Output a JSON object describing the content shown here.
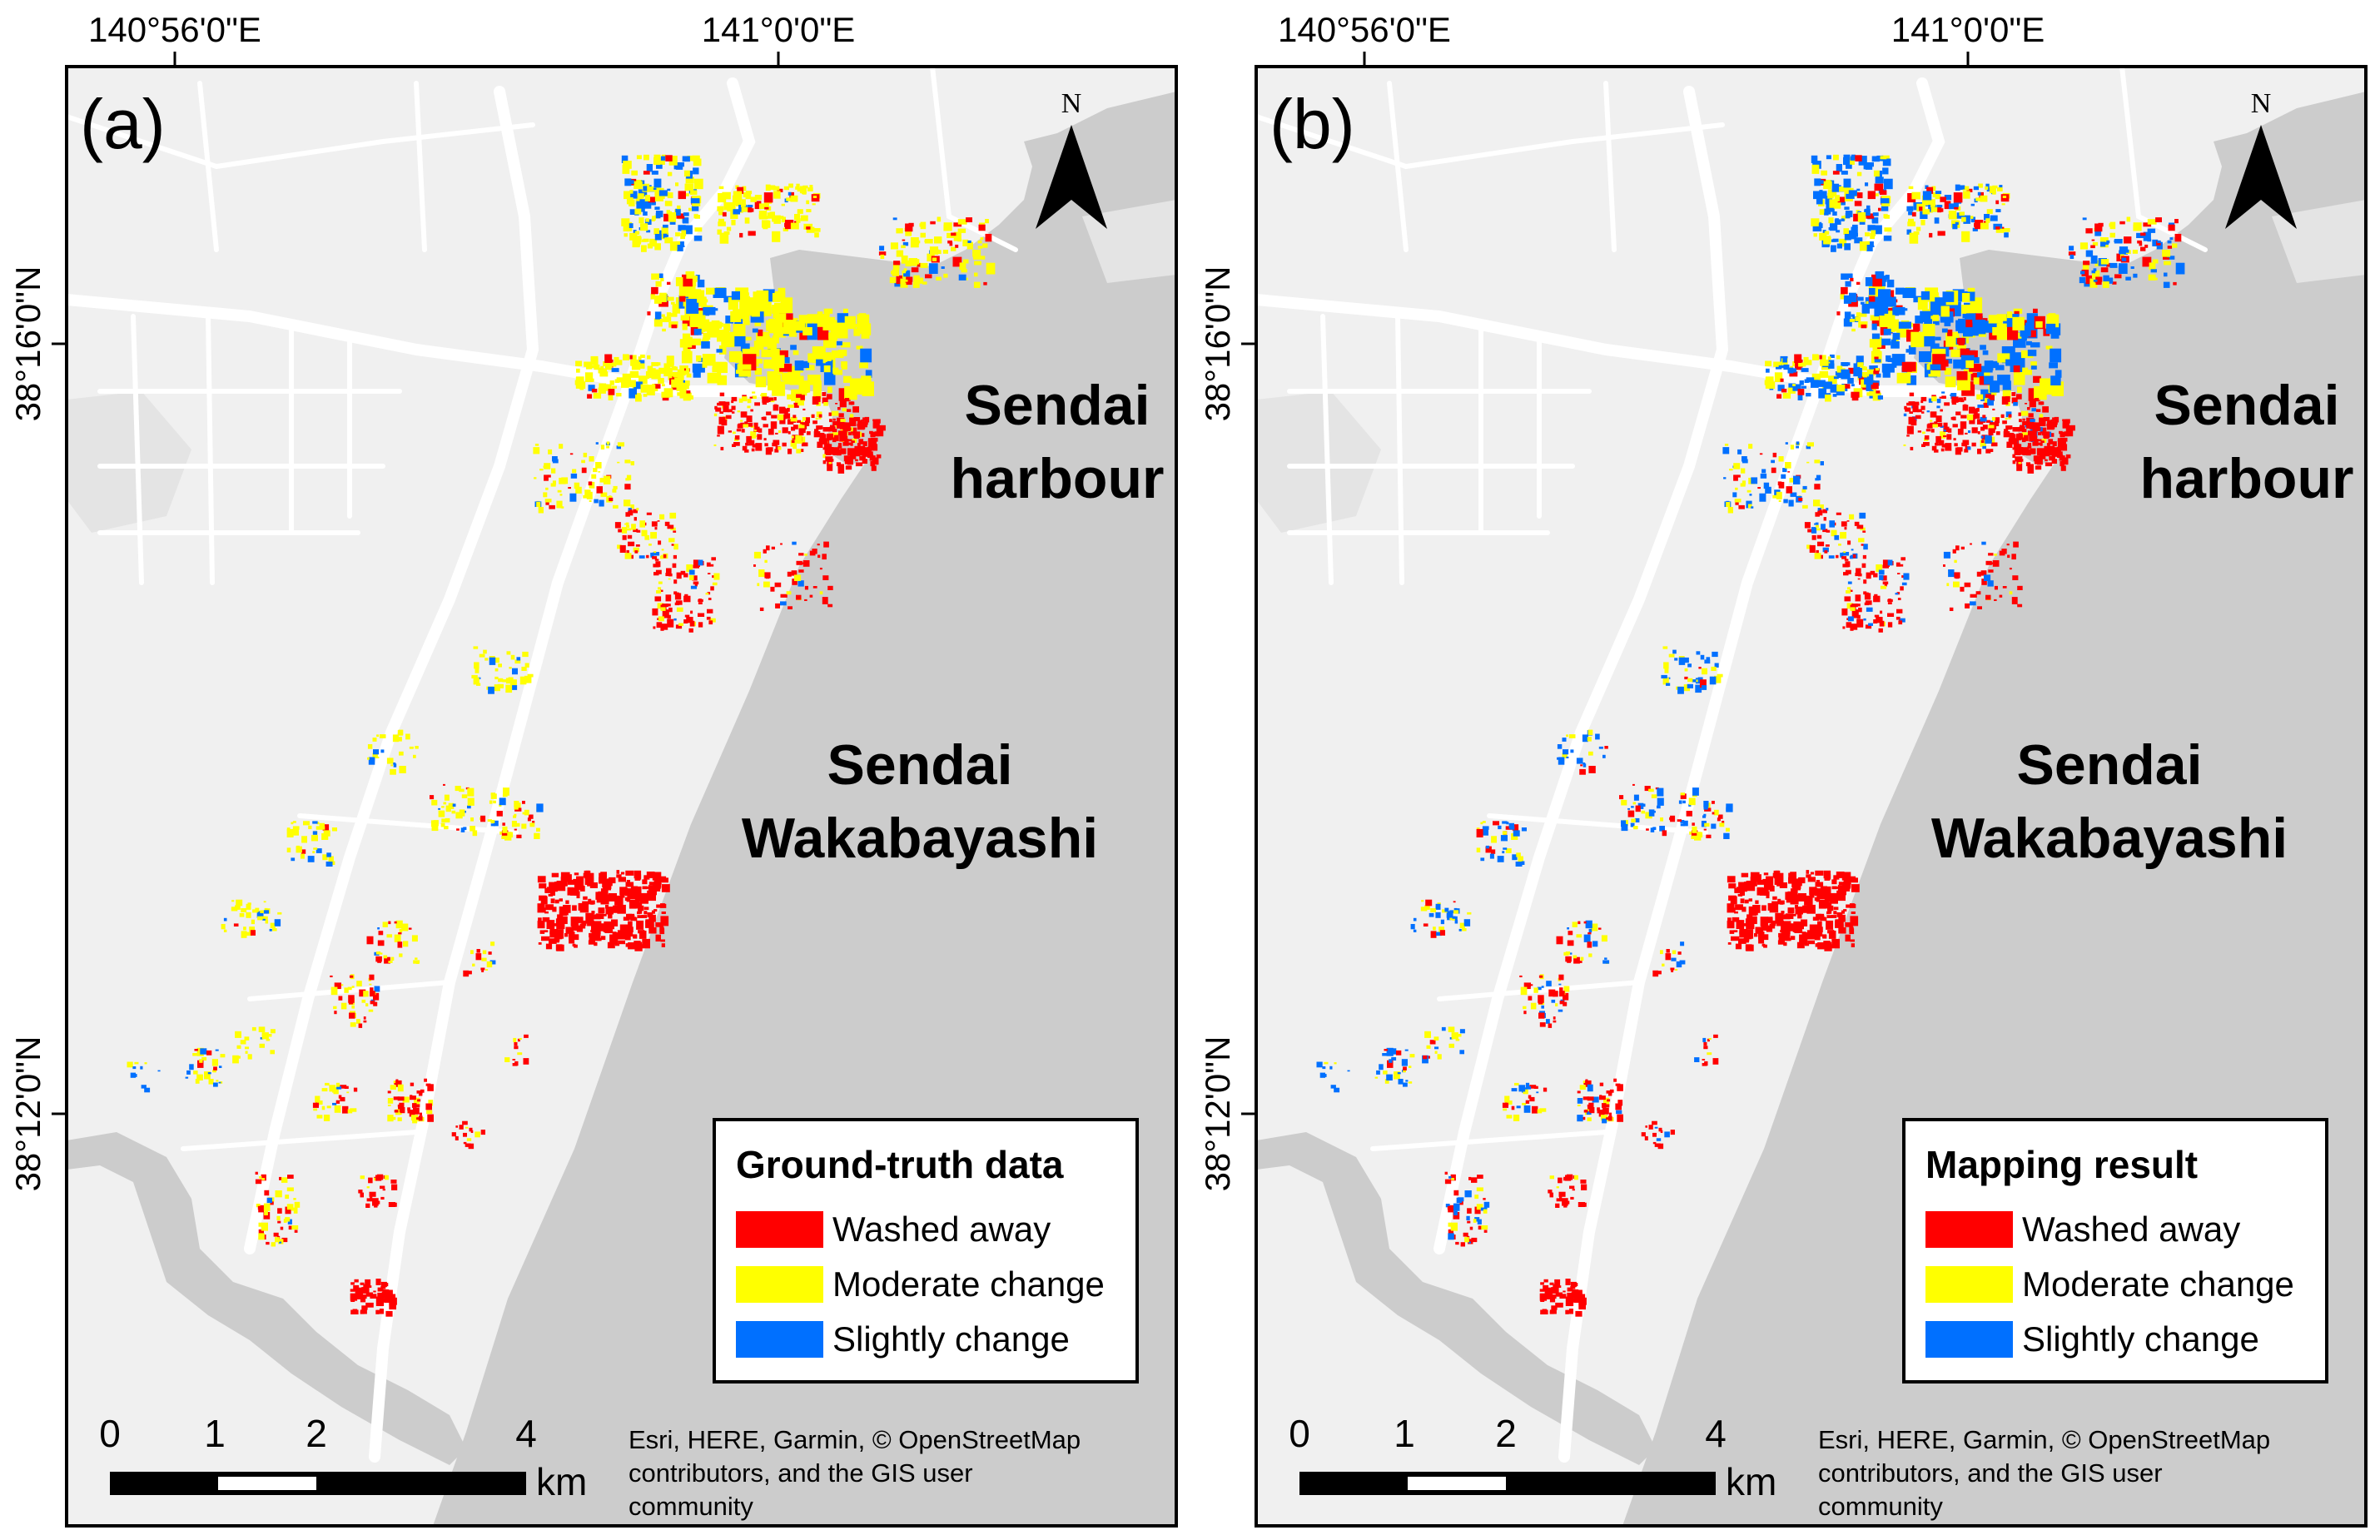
{
  "panels": [
    {
      "label": "(a)",
      "legend": {
        "title": "Ground-truth data",
        "items": [
          {
            "label": "Washed away",
            "color": "#ff0000"
          },
          {
            "label": "Moderate change",
            "color": "#ffff00"
          },
          {
            "label": "Slightly change",
            "color": "#0070ff"
          }
        ]
      }
    },
    {
      "label": "(b)",
      "legend": {
        "title": "Mapping result",
        "items": [
          {
            "label": "Washed away",
            "color": "#ff0000"
          },
          {
            "label": "Moderate change",
            "color": "#ffff00"
          },
          {
            "label": "Slightly change",
            "color": "#0070ff"
          }
        ]
      }
    }
  ],
  "coordinates": {
    "lon_ticks": [
      "140°56'0\"E",
      "141°0'0\"E"
    ],
    "lat_ticks": [
      "38°16'0\"N",
      "38°12'0\"N"
    ]
  },
  "places": {
    "harbour": [
      "Sendai",
      "harbour"
    ],
    "district": [
      "Sendai",
      "Wakabayashi"
    ]
  },
  "north_arrow": {
    "letter": "N",
    "icon": "north-arrow-icon"
  },
  "scale_bar": {
    "ticks": [
      "0",
      "1",
      "2",
      "4"
    ],
    "unit": "km"
  },
  "attribution": [
    "Esri, HERE, Garmin, © OpenStreetMap",
    "contributors, and the GIS user",
    "community"
  ],
  "colors": {
    "land": "#f0f0f0",
    "sea": "#cccccc",
    "road": "#ffffff",
    "washed_away": "#ff0000",
    "moderate_change": "#ffff00",
    "slightly_change": "#0070ff"
  }
}
